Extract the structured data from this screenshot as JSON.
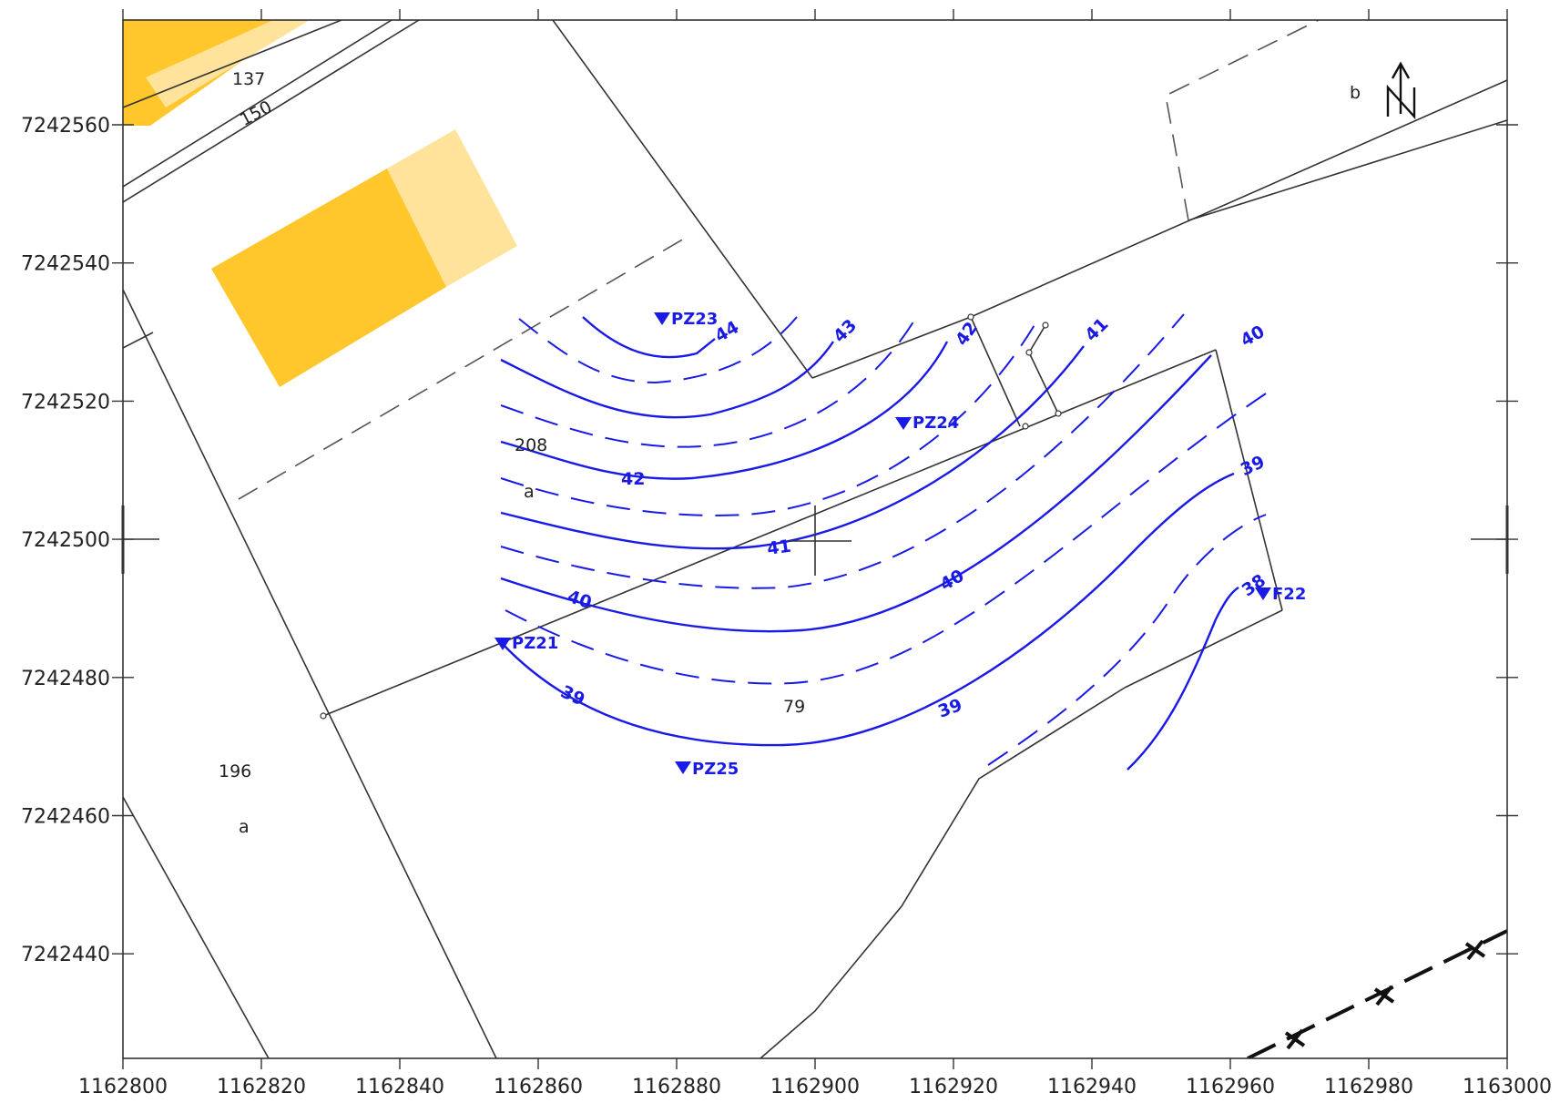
{
  "map": {
    "x_axis": {
      "ticks": [
        "1162800",
        "1162820",
        "1162840",
        "1162860",
        "1162880",
        "1162900",
        "1162920",
        "1162940",
        "1162960",
        "1162980",
        "1163000"
      ]
    },
    "y_axis": {
      "ticks": [
        "7242560",
        "7242540",
        "7242520",
        "7242500",
        "7242480",
        "7242460",
        "7242440"
      ]
    },
    "parcels": [
      {
        "id": "p137",
        "text": "137"
      },
      {
        "id": "p150",
        "text": "150"
      },
      {
        "id": "p208",
        "text": "208"
      },
      {
        "id": "p208a",
        "text": "a"
      },
      {
        "id": "p79",
        "text": "79"
      },
      {
        "id": "p196",
        "text": "196"
      },
      {
        "id": "p196a",
        "text": "a"
      },
      {
        "id": "pb",
        "text": "b"
      }
    ],
    "wells": [
      {
        "id": "pz23",
        "name": "PZ23"
      },
      {
        "id": "pz24",
        "name": "PZ24"
      },
      {
        "id": "pz21",
        "name": "PZ21"
      },
      {
        "id": "pz25",
        "name": "PZ25"
      },
      {
        "id": "f22",
        "name": "F22"
      }
    ],
    "contour_labels": [
      {
        "id": "c44",
        "value": "44"
      },
      {
        "id": "c43",
        "value": "43"
      },
      {
        "id": "c42a",
        "value": "42"
      },
      {
        "id": "c42b",
        "value": "42"
      },
      {
        "id": "c41a",
        "value": "41"
      },
      {
        "id": "c41b",
        "value": "41"
      },
      {
        "id": "c40a",
        "value": "40"
      },
      {
        "id": "c40b",
        "value": "40"
      },
      {
        "id": "c40c",
        "value": "40"
      },
      {
        "id": "c39a",
        "value": "39"
      },
      {
        "id": "c39b",
        "value": "39"
      },
      {
        "id": "c39c",
        "value": "39"
      },
      {
        "id": "c38",
        "value": "38"
      }
    ],
    "north_arrow": {
      "letter": "N",
      "icon": "north-arrow-icon"
    },
    "colors": {
      "contour": "#1a1ae6",
      "building_dark": "#ffc72c",
      "building_light": "#ffe39a",
      "line": "#333333"
    }
  }
}
